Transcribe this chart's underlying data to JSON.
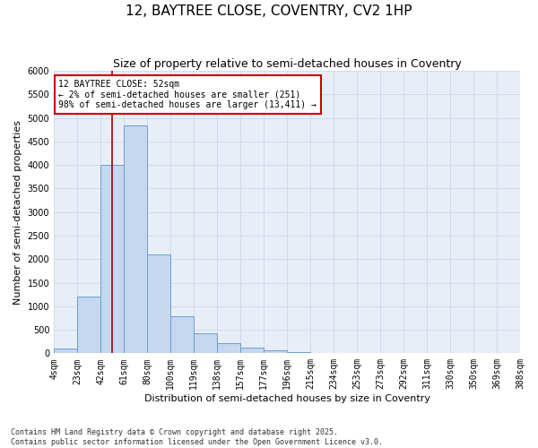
{
  "title": "12, BAYTREE CLOSE, COVENTRY, CV2 1HP",
  "subtitle": "Size of property relative to semi-detached houses in Coventry",
  "xlabel": "Distribution of semi-detached houses by size in Coventry",
  "ylabel": "Number of semi-detached properties",
  "categories": [
    "4sqm",
    "23sqm",
    "42sqm",
    "61sqm",
    "80sqm",
    "100sqm",
    "119sqm",
    "138sqm",
    "157sqm",
    "177sqm",
    "196sqm",
    "215sqm",
    "234sqm",
    "253sqm",
    "273sqm",
    "292sqm",
    "311sqm",
    "330sqm",
    "350sqm",
    "369sqm",
    "388sqm"
  ],
  "values": [
    100,
    1200,
    4000,
    4850,
    2100,
    780,
    430,
    220,
    120,
    70,
    30,
    10,
    0,
    0,
    0,
    0,
    0,
    0,
    0,
    0
  ],
  "bar_color": "#c5d8ef",
  "bar_edge_color": "#6a9fd0",
  "vline_color": "#aa0000",
  "vline_pos": 2.5,
  "annotation_text": "12 BAYTREE CLOSE: 52sqm\n← 2% of semi-detached houses are smaller (251)\n98% of semi-detached houses are larger (13,411) →",
  "annot_box_fc": "#ffffff",
  "annot_box_ec": "#cc0000",
  "ylim": [
    0,
    6000
  ],
  "yticks": [
    0,
    500,
    1000,
    1500,
    2000,
    2500,
    3000,
    3500,
    4000,
    4500,
    5000,
    5500,
    6000
  ],
  "grid_color": "#ced8ea",
  "bg_color": "#e8eef8",
  "footer": "Contains HM Land Registry data © Crown copyright and database right 2025.\nContains public sector information licensed under the Open Government Licence v3.0.",
  "title_fontsize": 11,
  "subtitle_fontsize": 9,
  "ylabel_fontsize": 8,
  "xlabel_fontsize": 8,
  "tick_fontsize": 7,
  "annot_fontsize": 7,
  "footer_fontsize": 6
}
